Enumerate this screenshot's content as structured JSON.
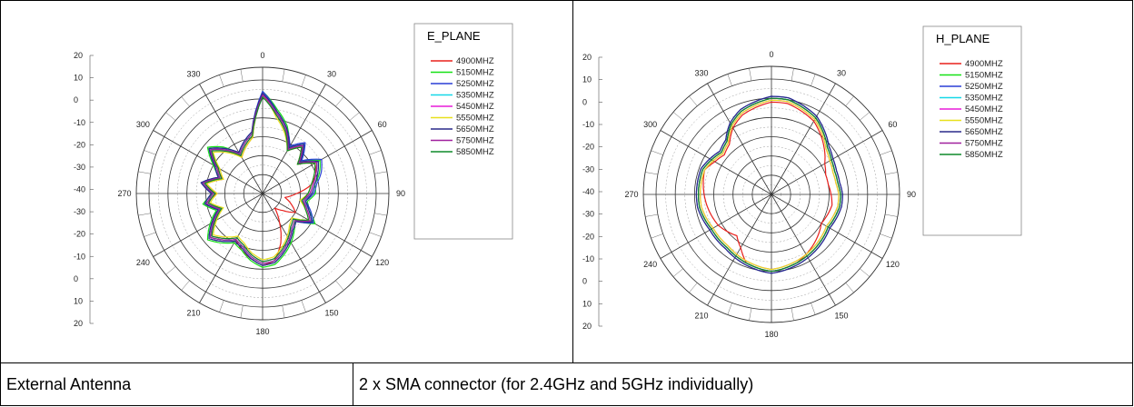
{
  "table": {
    "rows": [
      {
        "label": "External Antenna",
        "value": "2 x SMA connector (for 2.4GHz and 5GHz individually)"
      }
    ]
  },
  "chart_data": [
    {
      "type": "polar-line",
      "title": "E_PLANE",
      "angle_labels": [
        "0",
        "30",
        "60",
        "90",
        "120",
        "150",
        "180",
        "210",
        "240",
        "270",
        "300",
        "330"
      ],
      "radial_labels_upper": [
        "20",
        "10",
        "0",
        "-10",
        "-20",
        "-30",
        "-40"
      ],
      "radial_labels_lower": [
        "-30",
        "-20",
        "-10",
        "0",
        "10",
        "20"
      ],
      "radial_range": [
        -40,
        20
      ],
      "grid": true,
      "legend_position": "right",
      "series": [
        {
          "name": "4900MHZ",
          "color": "#e8201c",
          "values": [
            12,
            3,
            -4,
            -14,
            -8,
            -16,
            -8,
            -10,
            -14,
            -22,
            -28,
            -24,
            -20,
            -26,
            -30,
            -22,
            -12,
            -4,
            -2,
            -5,
            -8,
            -12,
            -8,
            -4,
            -10,
            -16,
            -10,
            -16,
            -10,
            -18,
            -12,
            -4,
            -10,
            -18,
            -14,
            -10
          ]
        },
        {
          "name": "5150MHZ",
          "color": "#16e116",
          "values": [
            14,
            5,
            -2,
            -12,
            -6,
            -14,
            -5,
            -8,
            -12,
            -12,
            -16,
            -14,
            -8,
            -18,
            -14,
            -10,
            -6,
            -2,
            -1,
            -4,
            -8,
            -10,
            -6,
            -2,
            -8,
            -14,
            -8,
            -14,
            -8,
            -16,
            -10,
            -2,
            -8,
            -16,
            -12,
            -8
          ]
        },
        {
          "name": "5250MHZ",
          "color": "#2a3fd6",
          "values": [
            14,
            4,
            -3,
            -11,
            -5,
            -13,
            -4,
            -7,
            -11,
            -13,
            -17,
            -13,
            -9,
            -17,
            -15,
            -11,
            -7,
            -3,
            -2,
            -5,
            -9,
            -11,
            -7,
            -3,
            -9,
            -15,
            -9,
            -13,
            -7,
            -15,
            -11,
            -3,
            -9,
            -15,
            -11,
            -7
          ]
        },
        {
          "name": "5350MHZ",
          "color": "#16d8e8",
          "values": [
            13,
            3,
            -4,
            -12,
            -6,
            -14,
            -6,
            -9,
            -12,
            -14,
            -18,
            -14,
            -10,
            -18,
            -16,
            -12,
            -8,
            -4,
            -3,
            -6,
            -10,
            -12,
            -8,
            -4,
            -10,
            -16,
            -10,
            -14,
            -8,
            -16,
            -12,
            -4,
            -10,
            -16,
            -12,
            -8
          ]
        },
        {
          "name": "5450MHZ",
          "color": "#e81cd8",
          "values": [
            13,
            2,
            -5,
            -13,
            -7,
            -15,
            -7,
            -10,
            -13,
            -15,
            -19,
            -15,
            -11,
            -19,
            -17,
            -13,
            -9,
            -5,
            -4,
            -7,
            -11,
            -13,
            -9,
            -5,
            -11,
            -17,
            -11,
            -15,
            -9,
            -17,
            -13,
            -5,
            -11,
            -17,
            -13,
            -9
          ]
        },
        {
          "name": "5550MHZ",
          "color": "#e8e01c",
          "values": [
            12,
            1,
            -6,
            -14,
            -8,
            -16,
            -8,
            -11,
            -14,
            -16,
            -20,
            -16,
            -12,
            -20,
            -18,
            -14,
            -10,
            -6,
            -5,
            -8,
            -12,
            -14,
            -10,
            -6,
            -12,
            -18,
            -12,
            -16,
            -10,
            -18,
            -14,
            -6,
            -12,
            -18,
            -14,
            -10
          ]
        },
        {
          "name": "5650MHZ",
          "color": "#2a2a8a",
          "values": [
            13,
            4,
            -3,
            -12,
            -6,
            -14,
            -6,
            -9,
            -12,
            -14,
            -17,
            -14,
            -10,
            -17,
            -15,
            -11,
            -7,
            -3,
            -2,
            -5,
            -9,
            -11,
            -7,
            -3,
            -9,
            -15,
            -9,
            -13,
            -7,
            -15,
            -11,
            -3,
            -9,
            -15,
            -11,
            -7
          ]
        },
        {
          "name": "5750MHZ",
          "color": "#a0209e",
          "values": [
            12,
            3,
            -4,
            -13,
            -7,
            -15,
            -7,
            -10,
            -13,
            -15,
            -18,
            -15,
            -11,
            -18,
            -16,
            -12,
            -8,
            -4,
            -3,
            -6,
            -10,
            -12,
            -8,
            -4,
            -10,
            -16,
            -10,
            -14,
            -8,
            -16,
            -12,
            -4,
            -10,
            -16,
            -12,
            -8
          ]
        },
        {
          "name": "5850MHZ",
          "color": "#0e8a2a",
          "values": [
            11,
            2,
            -5,
            -14,
            -8,
            -16,
            -8,
            -11,
            -14,
            -16,
            -19,
            -16,
            -12,
            -19,
            -17,
            -13,
            -9,
            -5,
            -4,
            -7,
            -11,
            -13,
            -9,
            -5,
            -11,
            -17,
            -11,
            -15,
            -9,
            -17,
            -13,
            -5,
            -11,
            -17,
            -13,
            -9
          ]
        }
      ]
    },
    {
      "type": "polar-line",
      "title": "H_PLANE",
      "angle_labels": [
        "0",
        "30",
        "60",
        "90",
        "120",
        "150",
        "180",
        "210",
        "240",
        "270",
        "300",
        "330"
      ],
      "radial_labels_upper": [
        "20",
        "10",
        "0",
        "-10",
        "-20",
        "-30",
        "-40"
      ],
      "radial_labels_lower": [
        "-30",
        "-20",
        "-10",
        "0",
        "10",
        "20"
      ],
      "radial_range": [
        -40,
        20
      ],
      "grid": true,
      "legend_position": "right",
      "series": [
        {
          "name": "4900MHZ",
          "color": "#e8201c",
          "values": [
            8,
            8,
            6,
            4,
            0,
            -4,
            -8,
            -10,
            -10,
            -9,
            -8,
            -9,
            -10,
            -8,
            -6,
            -4,
            -2,
            -1,
            0,
            -1,
            -2,
            -8,
            -12,
            -10,
            -8,
            -7,
            -6,
            -5,
            -4,
            -3,
            -6,
            -8,
            -6,
            0,
            4,
            6
          ]
        },
        {
          "name": "5150MHZ",
          "color": "#16e116",
          "values": [
            10,
            10,
            8,
            6,
            2,
            -2,
            -4,
            -5,
            -5,
            -4,
            -4,
            -5,
            -6,
            -5,
            -4,
            -3,
            -2,
            -1,
            0,
            -1,
            -2,
            -3,
            -4,
            -4,
            -4,
            -3,
            -2,
            -2,
            -2,
            -2,
            -4,
            -6,
            -4,
            2,
            6,
            8
          ]
        },
        {
          "name": "5250MHZ",
          "color": "#2a3fd6",
          "values": [
            11,
            11,
            9,
            7,
            3,
            -1,
            -3,
            -4,
            -4,
            -3,
            -3,
            -4,
            -5,
            -4,
            -3,
            -2,
            -1,
            0,
            1,
            0,
            -1,
            -2,
            -3,
            -3,
            -3,
            -2,
            -1,
            -1,
            -1,
            -1,
            -3,
            -5,
            -3,
            3,
            7,
            9
          ]
        },
        {
          "name": "5350MHZ",
          "color": "#16d8e8",
          "values": [
            10,
            10,
            8,
            6,
            2,
            -2,
            -4,
            -5,
            -5,
            -4,
            -4,
            -5,
            -6,
            -5,
            -4,
            -3,
            -2,
            -1,
            0,
            -1,
            -2,
            -3,
            -4,
            -4,
            -4,
            -3,
            -2,
            -2,
            -2,
            -2,
            -4,
            -6,
            -4,
            2,
            6,
            8
          ]
        },
        {
          "name": "5450MHZ",
          "color": "#e81cd8",
          "values": [
            9,
            9,
            7,
            5,
            1,
            -3,
            -5,
            -6,
            -6,
            -5,
            -5,
            -6,
            -7,
            -6,
            -5,
            -4,
            -3,
            -2,
            -1,
            -2,
            -3,
            -4,
            -5,
            -5,
            -5,
            -4,
            -3,
            -3,
            -3,
            -3,
            -5,
            -7,
            -5,
            1,
            5,
            7
          ]
        },
        {
          "name": "5550MHZ",
          "color": "#e8e01c",
          "values": [
            9,
            9,
            7,
            5,
            1,
            -3,
            -5,
            -6,
            -6,
            -5,
            -5,
            -6,
            -7,
            -6,
            -5,
            -4,
            -3,
            -2,
            -1,
            -2,
            -3,
            -4,
            -5,
            -5,
            -5,
            -4,
            -3,
            -3,
            -3,
            -3,
            -5,
            -7,
            -5,
            1,
            5,
            7
          ]
        },
        {
          "name": "5650MHZ",
          "color": "#2a2a8a",
          "values": [
            11,
            11,
            9,
            7,
            3,
            -1,
            -3,
            -4,
            -4,
            -3,
            -3,
            -4,
            -5,
            -4,
            -3,
            -2,
            -1,
            0,
            1,
            0,
            -1,
            -2,
            -3,
            -3,
            -3,
            -2,
            -1,
            -1,
            -1,
            -1,
            -3,
            -5,
            -3,
            3,
            7,
            9
          ]
        },
        {
          "name": "5750MHZ",
          "color": "#a0209e",
          "values": [
            10,
            10,
            8,
            6,
            2,
            -2,
            -4,
            -5,
            -5,
            -4,
            -4,
            -5,
            -6,
            -5,
            -4,
            -3,
            -2,
            -1,
            0,
            -1,
            -2,
            -3,
            -4,
            -4,
            -4,
            -3,
            -2,
            -2,
            -2,
            -2,
            -4,
            -6,
            -4,
            2,
            6,
            8
          ]
        },
        {
          "name": "5850MHZ",
          "color": "#0e8a2a",
          "values": [
            10,
            10,
            8,
            6,
            2,
            -2,
            -4,
            -5,
            -5,
            -4,
            -4,
            -5,
            -6,
            -5,
            -4,
            -3,
            -2,
            -1,
            0,
            -1,
            -2,
            -3,
            -4,
            -4,
            -4,
            -3,
            -2,
            -2,
            -2,
            -2,
            -4,
            -6,
            -4,
            2,
            6,
            8
          ]
        }
      ]
    }
  ]
}
